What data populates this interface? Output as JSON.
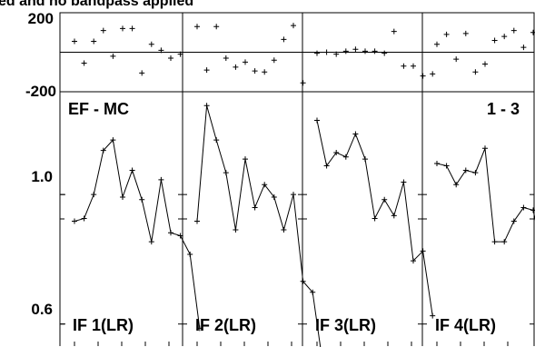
{
  "header": {
    "title_fragment": "ed and no bandpass applied"
  },
  "figure": {
    "baseline": "EF - MC",
    "scan_label": "1 - 3"
  },
  "chart_data": {
    "type": "line",
    "title": "ed and no bandpass applied",
    "top_panel": {
      "type": "scatter",
      "ylim": [
        -200,
        200
      ],
      "tick_labels": [
        "200",
        "-200"
      ]
    },
    "bottom_panel": {
      "type": "line",
      "ylim": [
        0.55,
        1.5
      ],
      "tick_labels": [
        "1.0",
        "0.6"
      ]
    },
    "grid": false,
    "legend": "none",
    "panels": [
      {
        "name": "IF 1(LR)",
        "phase": [
          55,
          -55,
          55,
          110,
          -20,
          120,
          120,
          -105,
          40,
          10,
          -30,
          -10
        ],
        "amp": [
          0.9,
          0.91,
          1.0,
          1.19,
          1.24,
          0.99,
          1.1,
          0.98,
          0.83,
          1.06,
          0.86,
          0.85,
          0.79,
          0.59
        ]
      },
      {
        "name": "IF 2(LR)",
        "phase": [
          130,
          -90,
          130,
          -30,
          -75,
          -50,
          -95,
          -100,
          -40,
          65,
          135,
          -155
        ],
        "amp": [
          0.9,
          1.42,
          1.24,
          1.09,
          0.87,
          1.15,
          0.95,
          1.04,
          0.99,
          0.87,
          1.0,
          0.71,
          0.68,
          0.52
        ]
      },
      {
        "name": "IF 3(LR)",
        "phase": [
          -5,
          0,
          -10,
          5,
          15,
          5,
          5,
          -5,
          105,
          -70,
          -70,
          -120,
          -110
        ],
        "amp": [
          1.34,
          1.12,
          1.18,
          1.16,
          1.27,
          1.15,
          0.91,
          0.98,
          0.92,
          1.05,
          0.77,
          0.8,
          0.62
        ]
      },
      {
        "name": "IF 4(LR)",
        "phase": [
          40,
          90,
          -35,
          95,
          -100,
          -60,
          60,
          80,
          110,
          25,
          100,
          -30
        ],
        "amp": [
          1.13,
          1.12,
          1.04,
          1.1,
          1.09,
          1.2,
          0.83,
          0.83,
          0.9,
          0.95,
          0.94,
          0.79,
          0.7,
          0.63
        ]
      }
    ]
  }
}
